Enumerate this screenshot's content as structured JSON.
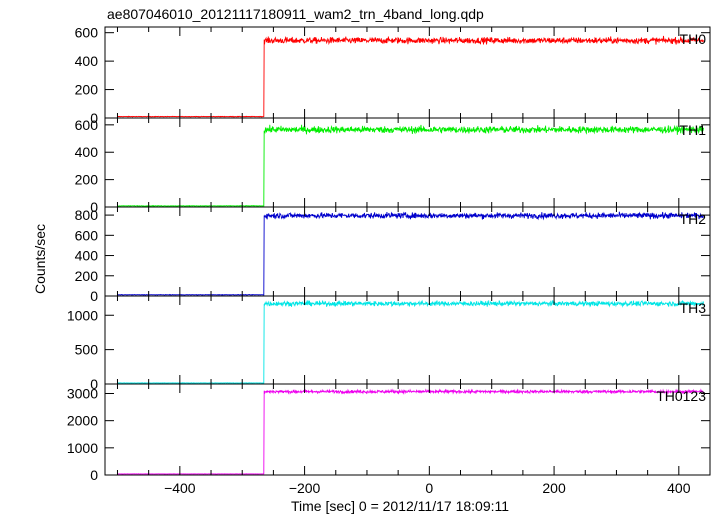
{
  "chart_data": {
    "type": "line",
    "title": "ae807046010_20121117180911_wam2_trn_4band_long.qdp",
    "xlabel": "Time [sec] 0 = 2012/11/17 18:09:11",
    "ylabel": "Counts/sec",
    "xlim": [
      -520,
      450
    ],
    "xticks": [
      -400,
      -200,
      0,
      200,
      400
    ],
    "xtick_labels": [
      "−400",
      "−200",
      "0",
      "200",
      "400"
    ],
    "trigger_time": -265,
    "data_start": -500,
    "data_end": 440,
    "panels": [
      {
        "name": "TH0",
        "color": "#ff0000",
        "ylim": [
          0,
          640
        ],
        "yticks": [
          0,
          200,
          400,
          600
        ],
        "ytick_labels": [
          "0",
          "200",
          "400",
          "600"
        ],
        "pre_level": 10,
        "post_level": 545,
        "noise": 22
      },
      {
        "name": "TH1",
        "color": "#00ee00",
        "ylim": [
          0,
          650
        ],
        "yticks": [
          0,
          200,
          400,
          600
        ],
        "ytick_labels": [
          "0",
          "200",
          "400",
          "600"
        ],
        "pre_level": 8,
        "post_level": 565,
        "noise": 25
      },
      {
        "name": "TH2",
        "color": "#0000cc",
        "ylim": [
          0,
          880
        ],
        "yticks": [
          0,
          200,
          400,
          600,
          800
        ],
        "ytick_labels": [
          "0",
          "200",
          "400",
          "600",
          "800"
        ],
        "pre_level": 12,
        "post_level": 795,
        "noise": 28
      },
      {
        "name": "TH3",
        "color": "#00e5e5",
        "ylim": [
          0,
          1280
        ],
        "yticks": [
          0,
          500,
          1000
        ],
        "ytick_labels": [
          "0",
          "500",
          "1000"
        ],
        "pre_level": 15,
        "post_level": 1170,
        "noise": 35
      },
      {
        "name": "TH0123",
        "color": "#ee00ee",
        "ylim": [
          0,
          3350
        ],
        "yticks": [
          0,
          1000,
          2000,
          3000
        ],
        "ytick_labels": [
          "0",
          "1000",
          "2000",
          "3000"
        ],
        "pre_level": 40,
        "post_level": 3070,
        "noise": 55
      }
    ]
  }
}
